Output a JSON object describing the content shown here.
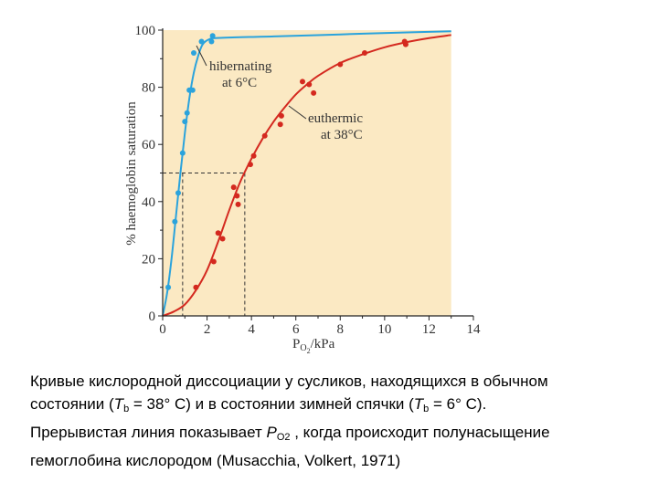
{
  "chart_data": {
    "type": "scatter",
    "xlabel_main": "P",
    "xlabel_sub": "O",
    "xlabel_sub2": "2",
    "xlabel_unit": "/kPa",
    "ylabel": "% haemoglobin saturation",
    "xlim": [
      0,
      14
    ],
    "ylim": [
      0,
      100
    ],
    "x_ticks": [
      "0",
      "2",
      "4",
      "6",
      "8",
      "10",
      "12",
      "14"
    ],
    "y_ticks": [
      "0",
      "20",
      "40",
      "60",
      "80",
      "100"
    ],
    "x_tick_values": [
      0,
      2,
      4,
      6,
      8,
      10,
      12,
      14
    ],
    "y_tick_values": [
      0,
      20,
      40,
      60,
      80,
      100
    ],
    "background_color": "#fbe9c3",
    "series": [
      {
        "name": "hibernating",
        "color": "#2ba3dc",
        "label_lines": [
          "hibernating",
          "at 6°C"
        ],
        "points": [
          [
            0.25,
            10
          ],
          [
            0.55,
            33
          ],
          [
            0.7,
            43
          ],
          [
            0.9,
            57
          ],
          [
            1.0,
            68
          ],
          [
            1.1,
            71
          ],
          [
            1.2,
            79
          ],
          [
            1.35,
            79
          ],
          [
            1.4,
            92
          ],
          [
            1.75,
            96
          ],
          [
            2.2,
            96
          ],
          [
            2.25,
            98
          ]
        ],
        "curve": [
          [
            0,
            0
          ],
          [
            0.2,
            8
          ],
          [
            0.4,
            20
          ],
          [
            0.6,
            35
          ],
          [
            0.8,
            50
          ],
          [
            1.0,
            64
          ],
          [
            1.2,
            76
          ],
          [
            1.4,
            85
          ],
          [
            1.6,
            91
          ],
          [
            1.8,
            95
          ],
          [
            2.1,
            96.8
          ],
          [
            2.6,
            97.3
          ],
          [
            5,
            97.8
          ],
          [
            8,
            98.5
          ],
          [
            11,
            99.2
          ],
          [
            13,
            99.6
          ]
        ]
      },
      {
        "name": "euthermic",
        "color": "#d4291f",
        "label_lines": [
          "euthermic",
          "at 38°C"
        ],
        "points": [
          [
            1.5,
            10
          ],
          [
            2.3,
            19
          ],
          [
            2.5,
            29
          ],
          [
            2.7,
            27
          ],
          [
            3.2,
            45
          ],
          [
            3.35,
            42
          ],
          [
            3.4,
            39
          ],
          [
            3.95,
            53
          ],
          [
            4.1,
            56
          ],
          [
            4.6,
            63
          ],
          [
            5.3,
            67
          ],
          [
            5.35,
            70
          ],
          [
            6.3,
            82
          ],
          [
            6.6,
            81
          ],
          [
            6.8,
            78
          ],
          [
            8.0,
            88
          ],
          [
            9.1,
            92
          ],
          [
            10.9,
            96
          ],
          [
            10.95,
            95
          ]
        ],
        "curve": [
          [
            0,
            0
          ],
          [
            0.5,
            1.5
          ],
          [
            1.0,
            4
          ],
          [
            1.5,
            9
          ],
          [
            2.0,
            16
          ],
          [
            2.5,
            26
          ],
          [
            3.0,
            37
          ],
          [
            3.5,
            47
          ],
          [
            4.0,
            55
          ],
          [
            4.5,
            62
          ],
          [
            5.0,
            68
          ],
          [
            5.5,
            73
          ],
          [
            6.0,
            77.5
          ],
          [
            6.5,
            81
          ],
          [
            7.0,
            84
          ],
          [
            8.0,
            88.5
          ],
          [
            9.0,
            91.5
          ],
          [
            10.0,
            94
          ],
          [
            11.0,
            95.8
          ],
          [
            12.0,
            97.2
          ],
          [
            13.0,
            98.3
          ]
        ]
      }
    ],
    "p50_guides": [
      {
        "x": 0.9,
        "y": 50
      },
      {
        "x": 3.7,
        "y": 50
      }
    ]
  },
  "caption": {
    "line1": "Кривые кислородной диссоциации у сусликов, находящихся в обычном",
    "line2_a": "состоянии  (",
    "line2_T1": "T",
    "line2_sub1": "b",
    "line2_b": " = 38° C) и в состоянии зимней спячки  (",
    "line2_T2": "T",
    "line2_sub2": "b",
    "line2_c": " = 6° C).",
    "line3_a": "Прерывистая линия показывает ",
    "line3_P": "P",
    "line3_sub": "O2",
    "line3_b": " , когда происходит полунасыщение",
    "line4": "гемоглобина кислородом (Musacchia, Volkert, 1971)"
  }
}
